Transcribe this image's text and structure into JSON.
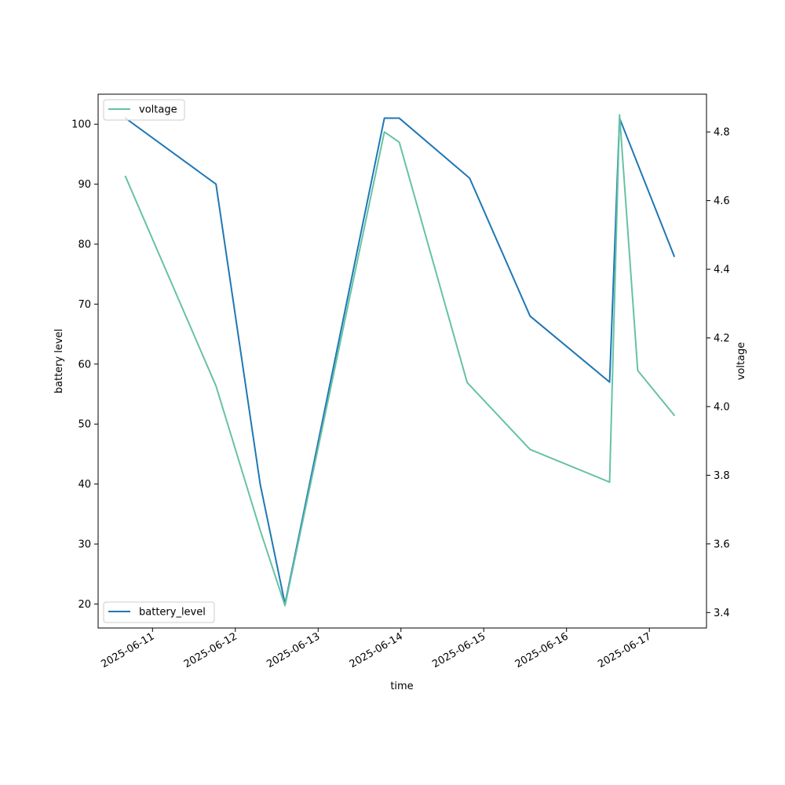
{
  "chart_data": {
    "type": "line",
    "xlabel": "time",
    "ylabel_left": "battery level",
    "ylabel_right": "voltage",
    "x_ticks": [
      "2025-06-11",
      "2025-06-12",
      "2025-06-13",
      "2025-06-14",
      "2025-06-15",
      "2025-06-16",
      "2025-06-17"
    ],
    "y_left_ticks": [
      20,
      30,
      40,
      50,
      60,
      70,
      80,
      90,
      100
    ],
    "y_right_ticks": [
      3.4,
      3.6,
      3.8,
      4.0,
      4.2,
      4.4,
      4.6,
      4.8
    ],
    "xlim": [
      "2025-06-10T08:14",
      "2025-06-17T16:34"
    ],
    "y_left_lim": [
      16,
      105
    ],
    "y_right_lim": [
      3.355,
      4.91
    ],
    "grid": false,
    "series": [
      {
        "name": "battery_level",
        "axis": "left",
        "color": "#1f77b4",
        "legend_position": "lower-left",
        "points": [
          [
            "2025-06-10T16:10",
            101
          ],
          [
            "2025-06-11T18:24",
            90
          ],
          [
            "2025-06-12T07:12",
            40
          ],
          [
            "2025-06-12T14:24",
            20
          ],
          [
            "2025-06-13T19:12",
            101
          ],
          [
            "2025-06-13T23:31",
            101
          ],
          [
            "2025-06-14T19:55",
            91
          ],
          [
            "2025-06-15T13:26",
            68
          ],
          [
            "2025-06-16T12:29",
            57
          ],
          [
            "2025-06-16T15:22",
            101
          ],
          [
            "2025-06-17T07:12",
            78
          ]
        ]
      },
      {
        "name": "voltage",
        "axis": "right",
        "color": "#66c2a5",
        "legend_position": "upper-left",
        "points": [
          [
            "2025-06-10T16:10",
            4.67
          ],
          [
            "2025-06-11T18:24",
            4.06
          ],
          [
            "2025-06-12T07:12",
            3.64
          ],
          [
            "2025-06-12T14:24",
            3.42
          ],
          [
            "2025-06-13T19:12",
            4.8
          ],
          [
            "2025-06-13T23:31",
            4.77
          ],
          [
            "2025-06-14T19:12",
            4.07
          ],
          [
            "2025-06-15T13:26",
            3.875
          ],
          [
            "2025-06-16T12:29",
            3.78
          ],
          [
            "2025-06-16T15:22",
            4.85
          ],
          [
            "2025-06-16T20:38",
            4.105
          ],
          [
            "2025-06-17T07:12",
            3.975
          ]
        ]
      }
    ]
  }
}
